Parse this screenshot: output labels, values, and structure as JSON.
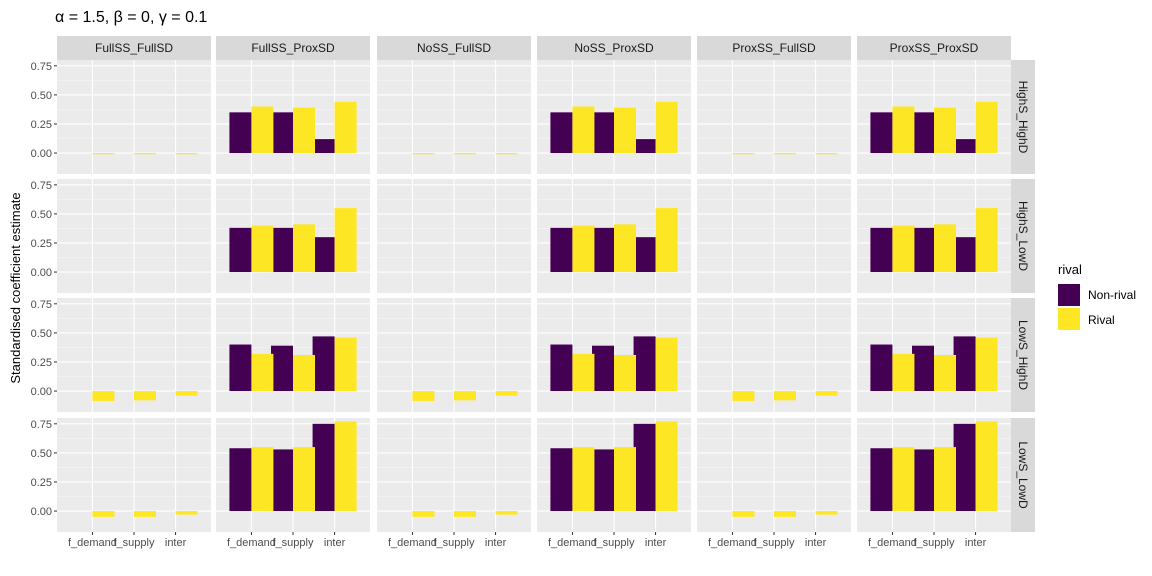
{
  "chart_data": {
    "type": "bar",
    "title": "α = 1.5, β = 0, γ = 0.1",
    "xlabel": "",
    "ylabel": "Standardised coefficient estimate",
    "ylim": [
      -0.18,
      0.8
    ],
    "yticks": [
      0,
      0.25,
      0.5,
      0.75
    ],
    "ytick_labels": [
      "0.00",
      "0.25",
      "0.50",
      "0.75"
    ],
    "categories": [
      "f_demand",
      "f_supply",
      "inter"
    ],
    "column_facets": [
      "FullSS_FullSD",
      "FullSS_ProxSD",
      "NoSS_FullSD",
      "NoSS_ProxSD",
      "ProxSS_FullSD",
      "ProxSS_ProxSD"
    ],
    "row_facets": [
      "HighS_HighD",
      "HighS_LowD",
      "LowS_HighD",
      "LowS_LowD"
    ],
    "legend": {
      "title": "rival",
      "entries": [
        "Non-rival",
        "Rival"
      ],
      "colors": [
        "#440154",
        "#FDE725"
      ],
      "position": "right"
    },
    "grid": true,
    "panels": {
      "FullSS_FullSD": {
        "HighS_HighD": {
          "Non-rival": [
            null,
            null,
            null
          ],
          "Rival": [
            -0.01,
            -0.005,
            -0.01
          ]
        },
        "HighS_LowD": {
          "Non-rival": [
            null,
            null,
            null
          ],
          "Rival": [
            null,
            null,
            null
          ]
        },
        "LowS_HighD": {
          "Non-rival": [
            null,
            null,
            null
          ],
          "Rival": [
            -0.085,
            -0.08,
            -0.04
          ]
        },
        "LowS_LowD": {
          "Non-rival": [
            null,
            null,
            null
          ],
          "Rival": [
            -0.05,
            -0.05,
            -0.03
          ]
        }
      },
      "FullSS_ProxSD": {
        "HighS_HighD": {
          "Non-rival": [
            0.35,
            0.35,
            0.12
          ],
          "Rival": [
            0.4,
            0.39,
            0.44
          ]
        },
        "HighS_LowD": {
          "Non-rival": [
            0.38,
            0.38,
            0.3
          ],
          "Rival": [
            0.4,
            0.41,
            0.55
          ]
        },
        "LowS_HighD": {
          "Non-rival": [
            0.4,
            0.39,
            0.47
          ],
          "Rival": [
            0.32,
            0.31,
            0.46
          ]
        },
        "LowS_LowD": {
          "Non-rival": [
            0.54,
            0.53,
            0.75
          ],
          "Rival": [
            0.55,
            0.55,
            0.77
          ]
        }
      },
      "NoSS_FullSD": {
        "HighS_HighD": {
          "Non-rival": [
            null,
            null,
            null
          ],
          "Rival": [
            -0.01,
            -0.005,
            -0.01
          ]
        },
        "HighS_LowD": {
          "Non-rival": [
            null,
            null,
            null
          ],
          "Rival": [
            null,
            null,
            null
          ]
        },
        "LowS_HighD": {
          "Non-rival": [
            null,
            null,
            null
          ],
          "Rival": [
            -0.085,
            -0.08,
            -0.04
          ]
        },
        "LowS_LowD": {
          "Non-rival": [
            null,
            null,
            null
          ],
          "Rival": [
            -0.05,
            -0.05,
            -0.03
          ]
        }
      },
      "NoSS_ProxSD": {
        "HighS_HighD": {
          "Non-rival": [
            0.35,
            0.35,
            0.12
          ],
          "Rival": [
            0.4,
            0.39,
            0.44
          ]
        },
        "HighS_LowD": {
          "Non-rival": [
            0.38,
            0.38,
            0.3
          ],
          "Rival": [
            0.4,
            0.41,
            0.55
          ]
        },
        "LowS_HighD": {
          "Non-rival": [
            0.4,
            0.39,
            0.47
          ],
          "Rival": [
            0.32,
            0.31,
            0.46
          ]
        },
        "LowS_LowD": {
          "Non-rival": [
            0.54,
            0.53,
            0.75
          ],
          "Rival": [
            0.55,
            0.55,
            0.77
          ]
        }
      },
      "ProxSS_FullSD": {
        "HighS_HighD": {
          "Non-rival": [
            null,
            null,
            null
          ],
          "Rival": [
            -0.01,
            -0.005,
            -0.01
          ]
        },
        "HighS_LowD": {
          "Non-rival": [
            null,
            null,
            null
          ],
          "Rival": [
            null,
            null,
            null
          ]
        },
        "LowS_HighD": {
          "Non-rival": [
            null,
            null,
            null
          ],
          "Rival": [
            -0.085,
            -0.08,
            -0.04
          ]
        },
        "LowS_LowD": {
          "Non-rival": [
            null,
            null,
            null
          ],
          "Rival": [
            -0.05,
            -0.05,
            -0.03
          ]
        }
      },
      "ProxSS_ProxSD": {
        "HighS_HighD": {
          "Non-rival": [
            0.35,
            0.35,
            0.12
          ],
          "Rival": [
            0.4,
            0.39,
            0.44
          ]
        },
        "HighS_LowD": {
          "Non-rival": [
            0.38,
            0.38,
            0.3
          ],
          "Rival": [
            0.4,
            0.41,
            0.55
          ]
        },
        "LowS_HighD": {
          "Non-rival": [
            0.4,
            0.39,
            0.47
          ],
          "Rival": [
            0.32,
            0.31,
            0.46
          ]
        },
        "LowS_LowD": {
          "Non-rival": [
            0.54,
            0.53,
            0.75
          ],
          "Rival": [
            0.55,
            0.55,
            0.77
          ]
        }
      }
    }
  }
}
